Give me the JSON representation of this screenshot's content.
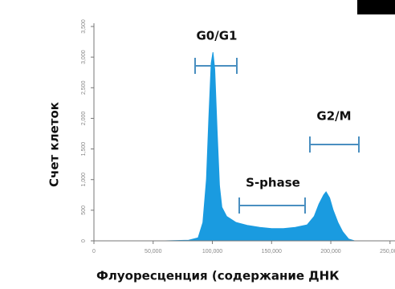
{
  "chart_data": {
    "type": "area",
    "xlabel": "Флуоресценция (содержание ДНК",
    "ylabel": "Счет клеток",
    "annotations": [
      "G0/G1",
      "S-phase",
      "G2/M"
    ],
    "color": "#1a9be0",
    "x": [
      0,
      60000,
      80000,
      88000,
      92000,
      95000,
      97000,
      99000,
      100500,
      102000,
      104000,
      106000,
      108000,
      112000,
      120000,
      130000,
      140000,
      150000,
      160000,
      170000,
      180000,
      186000,
      190000,
      194000,
      196000,
      199000,
      202000,
      206000,
      210000,
      215000,
      220000,
      254000
    ],
    "values": [
      0,
      0,
      10,
      50,
      300,
      1000,
      2000,
      2900,
      3080,
      2800,
      1800,
      900,
      550,
      400,
      300,
      250,
      220,
      200,
      200,
      220,
      260,
      400,
      600,
      750,
      800,
      700,
      500,
      300,
      150,
      30,
      0,
      0
    ],
    "xlim": [
      0,
      254200
    ],
    "ylim": [
      0,
      3500
    ],
    "xticks": [
      0,
      {
        "value": 50000,
        "label": "50,000"
      },
      {
        "value": 100000,
        "label": "100,000"
      },
      {
        "value": 150000,
        "label": "150,000"
      },
      {
        "value": 200000,
        "label": "200,000"
      },
      {
        "value": 250000,
        "label": "250,000"
      }
    ],
    "yticks": [
      0,
      500,
      {
        "value": 1000,
        "label": "1,000"
      },
      {
        "value": 1500,
        "label": "1,500"
      },
      {
        "value": 2000,
        "label": "2,000"
      },
      {
        "value": 2500,
        "label": "2,500"
      },
      {
        "value": 3000,
        "label": "3,000"
      },
      {
        "value": 3500,
        "label": "3,500"
      }
    ]
  }
}
